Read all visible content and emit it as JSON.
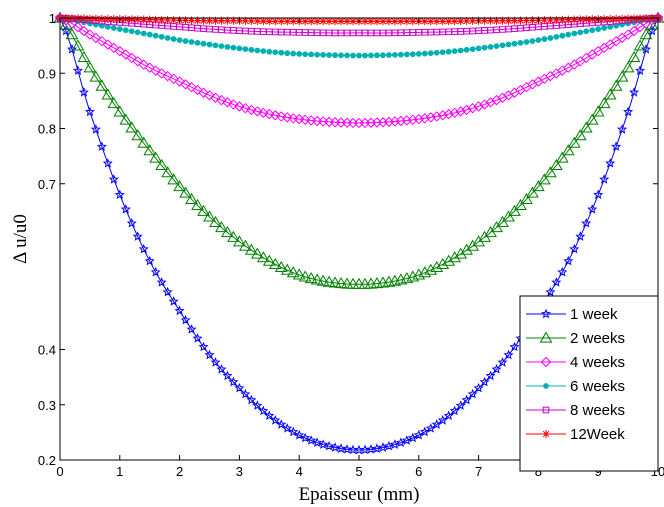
{
  "chart_data": {
    "type": "line",
    "title": "",
    "xlabel": "Epaisseur (mm)",
    "ylabel": "Δ u/u0",
    "xlim": [
      0,
      10
    ],
    "ylim": [
      0.2,
      1.0
    ],
    "xticks": [
      "0",
      "1",
      "2",
      "3",
      "4",
      "5",
      "6",
      "7",
      "8",
      "9",
      "10"
    ],
    "yticks": [
      {
        "value": 0.2,
        "label": "0.2"
      },
      {
        "value": 0.3,
        "label": "0.3"
      },
      {
        "value": 0.4,
        "label": "0.4"
      },
      {
        "value": 0.7,
        "label": "0.7"
      },
      {
        "value": 0.8,
        "label": "0.8"
      },
      {
        "value": 0.9,
        "label": "0.9"
      },
      {
        "value": 1.0,
        "label": "1"
      }
    ],
    "grid": false,
    "legend_position": "bottom-right",
    "x": [
      0,
      0.5,
      1,
      1.5,
      2,
      2.5,
      3,
      3.5,
      4,
      4.5,
      5,
      5.5,
      6,
      6.5,
      7,
      7.5,
      8,
      8.5,
      9,
      9.5,
      10
    ],
    "series": [
      {
        "name": "1 week",
        "color": "#0000ff",
        "marker": "star",
        "values": [
          1.0,
          0.83,
          0.68,
          0.56,
          0.47,
          0.39,
          0.33,
          0.28,
          0.245,
          0.225,
          0.218,
          0.225,
          0.245,
          0.28,
          0.33,
          0.39,
          0.47,
          0.56,
          0.68,
          0.83,
          1.0
        ]
      },
      {
        "name": "2 weeks",
        "color": "#008000",
        "marker": "triangle",
        "values": [
          1.0,
          0.91,
          0.83,
          0.76,
          0.695,
          0.64,
          0.595,
          0.56,
          0.535,
          0.522,
          0.518,
          0.522,
          0.535,
          0.56,
          0.595,
          0.64,
          0.695,
          0.76,
          0.83,
          0.91,
          1.0
        ]
      },
      {
        "name": "4 weeks",
        "color": "#ff00ff",
        "marker": "diamond",
        "values": [
          1.0,
          0.97,
          0.94,
          0.91,
          0.885,
          0.86,
          0.84,
          0.826,
          0.817,
          0.812,
          0.81,
          0.812,
          0.817,
          0.826,
          0.84,
          0.86,
          0.885,
          0.91,
          0.94,
          0.97,
          1.0
        ]
      },
      {
        "name": "6 weeks",
        "color": "#00b0b0",
        "marker": "dot",
        "values": [
          1.0,
          0.99,
          0.98,
          0.97,
          0.96,
          0.952,
          0.945,
          0.939,
          0.935,
          0.933,
          0.932,
          0.933,
          0.935,
          0.939,
          0.945,
          0.952,
          0.96,
          0.97,
          0.98,
          0.99,
          1.0
        ]
      },
      {
        "name": "8 weeks",
        "color": "#cc00cc",
        "marker": "square",
        "values": [
          1.0,
          0.996,
          0.992,
          0.988,
          0.984,
          0.98,
          0.977,
          0.975,
          0.974,
          0.973,
          0.973,
          0.973,
          0.974,
          0.975,
          0.977,
          0.98,
          0.984,
          0.988,
          0.992,
          0.996,
          1.0
        ]
      },
      {
        "name": "12Week",
        "color": "#ff0000",
        "marker": "asterisk",
        "values": [
          1.0,
          0.999,
          0.998,
          0.997,
          0.996,
          0.995,
          0.995,
          0.994,
          0.994,
          0.994,
          0.994,
          0.994,
          0.994,
          0.994,
          0.995,
          0.995,
          0.996,
          0.997,
          0.998,
          0.999,
          1.0
        ]
      }
    ]
  }
}
